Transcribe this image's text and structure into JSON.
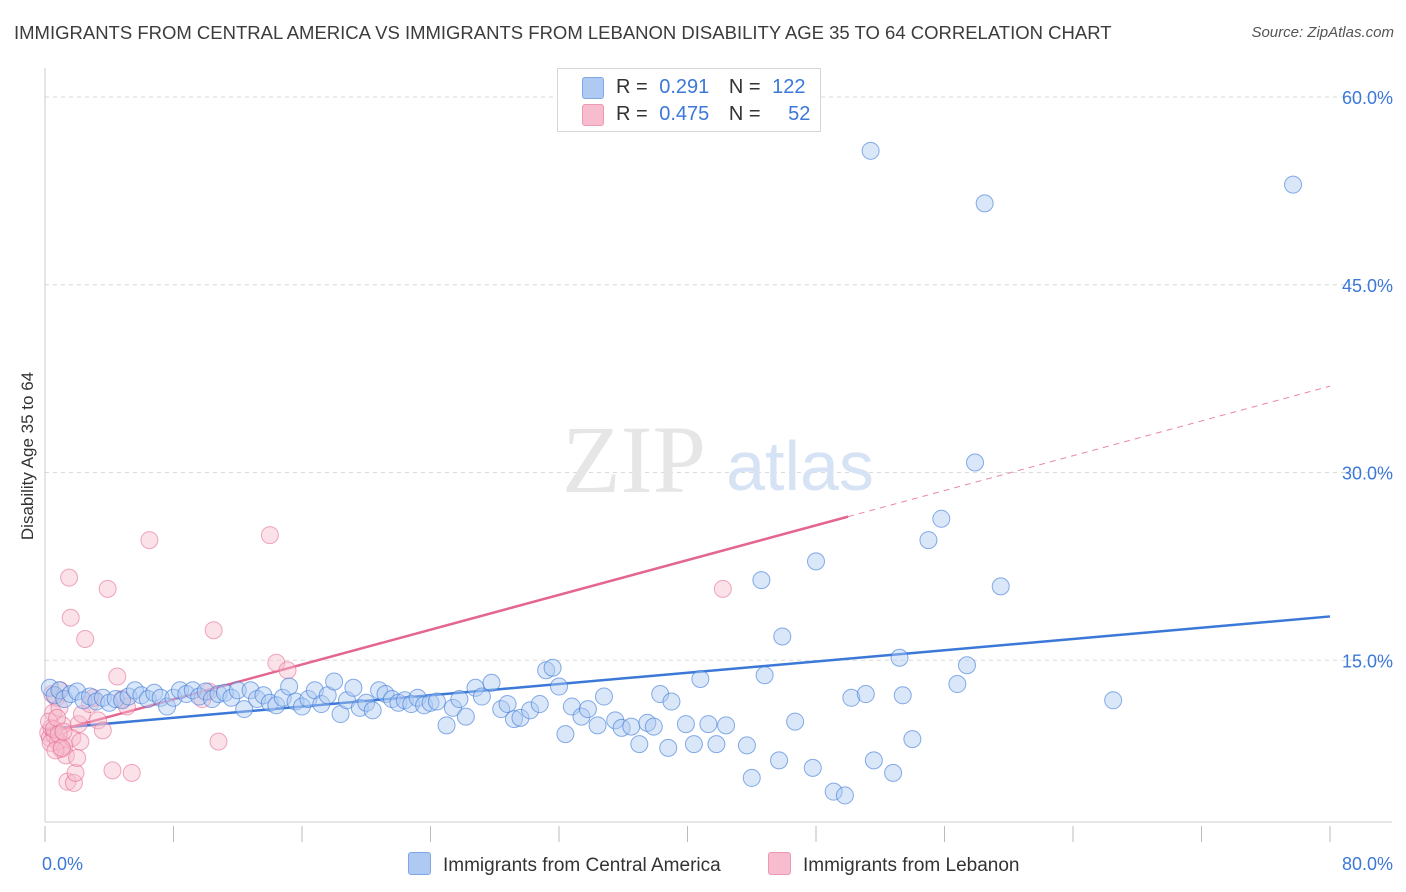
{
  "title": "IMMIGRANTS FROM CENTRAL AMERICA VS IMMIGRANTS FROM LEBANON DISABILITY AGE 35 TO 64 CORRELATION CHART",
  "source": "Source: ZipAtlas.com",
  "watermark": {
    "zip": "ZIP",
    "atlas": "atlas"
  },
  "legend": {
    "rows": [
      {
        "r_label": "R =",
        "r_value": "0.291",
        "n_label": "N =",
        "n_value": "122",
        "color": "#aec9f2"
      },
      {
        "r_label": "R =",
        "r_value": "0.475",
        "n_label": "N =",
        "n_value": "52",
        "color": "#f7bccd"
      }
    ]
  },
  "colors": {
    "blue": "#3b78d8",
    "blue_fill": "#aec9f2",
    "pink": "#e46590",
    "pink_fill": "#f7bccd",
    "grid": "#d9d9d9",
    "tick_label": "#3b78d8"
  },
  "chart_data": {
    "type": "scatter",
    "title": "IMMIGRANTS FROM CENTRAL AMERICA VS IMMIGRANTS FROM LEBANON DISABILITY AGE 35 TO 64 CORRELATION CHART",
    "xlabel": "",
    "ylabel": "Disability Age 35 to 64",
    "xlim": [
      0,
      80
    ],
    "ylim": [
      0,
      60
    ],
    "x_tick_labels": [
      "0.0%",
      "80.0%"
    ],
    "y_ticks": [
      15,
      30,
      45,
      60
    ],
    "y_tick_labels": [
      "15.0%",
      "30.0%",
      "45.0%",
      "60.0%"
    ],
    "grid": true,
    "legend_position": "top-center",
    "series": [
      {
        "name": "Immigrants from Central America",
        "color": "#3b78d8",
        "r": 0.291,
        "n": 122,
        "trend": {
          "x": [
            0,
            80
          ],
          "y": [
            9.5,
            18.5
          ],
          "dashed_from": null
        },
        "points": [
          [
            0.3,
            12.8
          ],
          [
            0.6,
            12.2
          ],
          [
            0.9,
            12.6
          ],
          [
            1.2,
            11.9
          ],
          [
            1.6,
            12.3
          ],
          [
            2.0,
            12.5
          ],
          [
            2.4,
            11.8
          ],
          [
            2.8,
            12.1
          ],
          [
            3.2,
            11.7
          ],
          [
            3.6,
            12.0
          ],
          [
            4.0,
            11.6
          ],
          [
            4.4,
            11.9
          ],
          [
            4.8,
            11.8
          ],
          [
            5.2,
            12.1
          ],
          [
            5.6,
            12.6
          ],
          [
            6.0,
            12.2
          ],
          [
            6.4,
            11.9
          ],
          [
            6.8,
            12.4
          ],
          [
            7.2,
            12.0
          ],
          [
            7.6,
            11.3
          ],
          [
            8.0,
            12.0
          ],
          [
            8.4,
            12.6
          ],
          [
            8.8,
            12.3
          ],
          [
            9.2,
            12.6
          ],
          [
            9.6,
            12.1
          ],
          [
            10.0,
            12.5
          ],
          [
            10.4,
            11.9
          ],
          [
            10.8,
            12.3
          ],
          [
            11.2,
            12.4
          ],
          [
            11.6,
            12.0
          ],
          [
            12.0,
            12.6
          ],
          [
            12.4,
            11.1
          ],
          [
            12.8,
            12.6
          ],
          [
            13.2,
            11.9
          ],
          [
            13.6,
            12.2
          ],
          [
            14.0,
            11.6
          ],
          [
            14.4,
            11.4
          ],
          [
            14.8,
            12.0
          ],
          [
            15.2,
            12.9
          ],
          [
            15.6,
            11.7
          ],
          [
            16.0,
            11.3
          ],
          [
            16.4,
            11.9
          ],
          [
            16.8,
            12.6
          ],
          [
            17.2,
            11.5
          ],
          [
            17.6,
            12.2
          ],
          [
            18.0,
            13.3
          ],
          [
            18.4,
            10.7
          ],
          [
            18.8,
            11.8
          ],
          [
            19.2,
            12.8
          ],
          [
            19.6,
            11.2
          ],
          [
            20.0,
            11.6
          ],
          [
            20.4,
            11.0
          ],
          [
            20.8,
            12.6
          ],
          [
            21.2,
            12.3
          ],
          [
            21.6,
            11.9
          ],
          [
            22.0,
            11.6
          ],
          [
            22.4,
            11.8
          ],
          [
            22.8,
            11.5
          ],
          [
            23.2,
            12.0
          ],
          [
            23.6,
            11.4
          ],
          [
            24.0,
            11.6
          ],
          [
            24.4,
            11.7
          ],
          [
            25.0,
            9.8
          ],
          [
            25.4,
            11.2
          ],
          [
            25.8,
            11.9
          ],
          [
            26.2,
            10.5
          ],
          [
            26.8,
            12.8
          ],
          [
            27.2,
            12.1
          ],
          [
            27.8,
            13.2
          ],
          [
            28.4,
            11.1
          ],
          [
            28.8,
            11.5
          ],
          [
            29.2,
            10.3
          ],
          [
            29.6,
            10.4
          ],
          [
            30.2,
            11.0
          ],
          [
            30.8,
            11.5
          ],
          [
            31.2,
            14.2
          ],
          [
            31.6,
            14.4
          ],
          [
            32.0,
            12.9
          ],
          [
            32.4,
            9.1
          ],
          [
            32.8,
            11.3
          ],
          [
            33.4,
            10.5
          ],
          [
            33.8,
            11.1
          ],
          [
            34.4,
            9.8
          ],
          [
            34.8,
            12.1
          ],
          [
            35.5,
            10.2
          ],
          [
            35.9,
            9.6
          ],
          [
            36.5,
            9.7
          ],
          [
            37.0,
            8.3
          ],
          [
            37.5,
            10.0
          ],
          [
            37.9,
            9.7
          ],
          [
            38.3,
            12.3
          ],
          [
            38.8,
            8.0
          ],
          [
            39.0,
            11.7
          ],
          [
            39.9,
            9.9
          ],
          [
            40.4,
            8.3
          ],
          [
            40.8,
            13.5
          ],
          [
            41.3,
            9.9
          ],
          [
            41.8,
            8.3
          ],
          [
            42.4,
            9.8
          ],
          [
            43.7,
            8.2
          ],
          [
            44.0,
            5.6
          ],
          [
            44.6,
            21.4
          ],
          [
            44.8,
            13.8
          ],
          [
            45.7,
            7.0
          ],
          [
            45.9,
            16.9
          ],
          [
            46.7,
            10.1
          ],
          [
            47.8,
            6.4
          ],
          [
            48.0,
            22.9
          ],
          [
            49.1,
            4.5
          ],
          [
            49.8,
            4.2
          ],
          [
            50.2,
            12.0
          ],
          [
            51.1,
            12.3
          ],
          [
            51.4,
            55.7
          ],
          [
            51.6,
            7.0
          ],
          [
            52.8,
            6.0
          ],
          [
            53.2,
            15.2
          ],
          [
            53.4,
            12.2
          ],
          [
            54.0,
            8.7
          ],
          [
            55.0,
            24.6
          ],
          [
            55.8,
            26.3
          ],
          [
            56.8,
            13.1
          ],
          [
            57.4,
            14.6
          ],
          [
            57.9,
            30.8
          ],
          [
            58.5,
            51.5
          ],
          [
            59.5,
            20.9
          ],
          [
            66.5,
            11.8
          ],
          [
            77.7,
            53.0
          ]
        ]
      },
      {
        "name": "Immigrants from Lebanon",
        "color": "#e46590",
        "r": 0.475,
        "n": 52,
        "trend": {
          "x": [
            0,
            80
          ],
          "y": [
            9.1,
            36.9
          ],
          "solid_until_x": 50
        },
        "points": [
          [
            0.2,
            9.2
          ],
          [
            0.3,
            8.8
          ],
          [
            0.4,
            9.6
          ],
          [
            0.5,
            10.8
          ],
          [
            0.6,
            9.0
          ],
          [
            0.7,
            12.0
          ],
          [
            0.8,
            8.5
          ],
          [
            0.9,
            11.2
          ],
          [
            1.0,
            7.9
          ],
          [
            1.1,
            9.8
          ],
          [
            1.2,
            8.2
          ],
          [
            1.3,
            7.4
          ],
          [
            1.4,
            5.3
          ],
          [
            1.5,
            21.6
          ],
          [
            1.6,
            18.4
          ],
          [
            1.7,
            8.8
          ],
          [
            1.8,
            5.2
          ],
          [
            1.9,
            6.0
          ],
          [
            2.0,
            7.2
          ],
          [
            2.1,
            9.9
          ],
          [
            2.2,
            8.5
          ],
          [
            2.3,
            10.7
          ],
          [
            2.5,
            16.7
          ],
          [
            2.8,
            11.5
          ],
          [
            3.0,
            12.0
          ],
          [
            3.3,
            10.2
          ],
          [
            3.6,
            9.4
          ],
          [
            3.9,
            20.7
          ],
          [
            4.2,
            6.2
          ],
          [
            4.5,
            13.7
          ],
          [
            4.8,
            11.9
          ],
          [
            5.1,
            11.3
          ],
          [
            5.4,
            6.0
          ],
          [
            6.5,
            24.6
          ],
          [
            9.8,
            11.9
          ],
          [
            10.2,
            12.5
          ],
          [
            10.5,
            17.4
          ],
          [
            10.8,
            8.5
          ],
          [
            14.0,
            25.0
          ],
          [
            14.4,
            14.8
          ],
          [
            15.1,
            14.2
          ],
          [
            42.2,
            20.7
          ],
          [
            0.25,
            10.1
          ],
          [
            0.35,
            8.4
          ],
          [
            0.45,
            12.3
          ],
          [
            0.55,
            9.5
          ],
          [
            0.65,
            7.8
          ],
          [
            0.75,
            10.4
          ],
          [
            0.85,
            9.1
          ],
          [
            0.95,
            12.6
          ],
          [
            1.05,
            8.0
          ],
          [
            1.15,
            9.3
          ]
        ]
      }
    ]
  },
  "bottom_legend": {
    "items": [
      {
        "label": "Immigrants from Central America",
        "color": "#aec9f2"
      },
      {
        "label": "Immigrants from Lebanon",
        "color": "#f7bccd"
      }
    ]
  }
}
